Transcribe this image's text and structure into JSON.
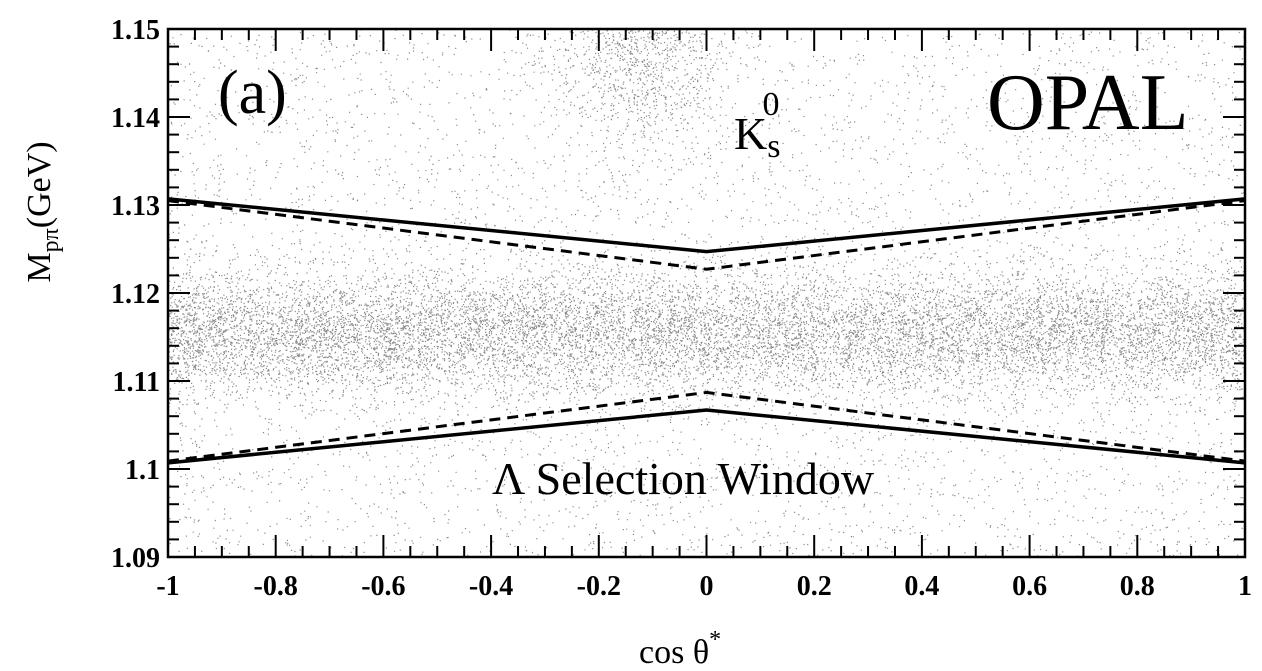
{
  "chart_data": {
    "type": "scatter",
    "title": "",
    "xlabel_main": "cos θ",
    "xlabel_sup": "*",
    "ylabel_main": "M",
    "ylabel_sub": "pπ",
    "ylabel_unit": "(GeV)",
    "xlim": [
      -1,
      1
    ],
    "ylim": [
      1.09,
      1.15
    ],
    "xticks": [
      -1,
      -0.8,
      -0.6,
      -0.4,
      -0.2,
      0,
      0.2,
      0.4,
      0.6,
      0.8,
      1
    ],
    "xtick_labels": [
      "-1",
      "-0.8",
      "-0.6",
      "-0.4",
      "-0.2",
      "0",
      "0.2",
      "0.4",
      "0.6",
      "0.8",
      "1"
    ],
    "yticks": [
      1.09,
      1.1,
      1.11,
      1.12,
      1.13,
      1.14,
      1.15
    ],
    "ytick_labels": [
      "1.09",
      "1.1",
      "1.11",
      "1.12",
      "1.13",
      "1.14",
      "1.15"
    ],
    "grid": false,
    "scatter_density": {
      "description_bands": [
        {
          "center_y": 1.1155,
          "sigma_y": 0.0035,
          "weight": 0.55
        },
        {
          "center_y": 1.148,
          "sigma_y": 0.006,
          "x_center": -0.12,
          "x_sigma": 0.08,
          "weight": 0.05
        },
        {
          "uniform": true,
          "weight": 0.4
        }
      ]
    },
    "lines": [
      {
        "style": "solid",
        "x": [
          -1,
          0,
          1
        ],
        "y": [
          1.1307,
          1.1247,
          1.1307
        ]
      },
      {
        "style": "dashed",
        "x": [
          -1,
          0,
          1
        ],
        "y": [
          1.1305,
          1.1227,
          1.1305
        ]
      },
      {
        "style": "dashed",
        "x": [
          -1,
          0,
          1
        ],
        "y": [
          1.1009,
          1.1087,
          1.1009
        ]
      },
      {
        "style": "solid",
        "x": [
          -1,
          0,
          1
        ],
        "y": [
          1.1007,
          1.1067,
          1.1007
        ]
      }
    ],
    "annotations": {
      "panel_label": "(a)",
      "particle_main": "K",
      "particle_sub": "s",
      "particle_sup": "0",
      "experiment": "OPAL",
      "window_label": "Λ Selection Window"
    }
  }
}
